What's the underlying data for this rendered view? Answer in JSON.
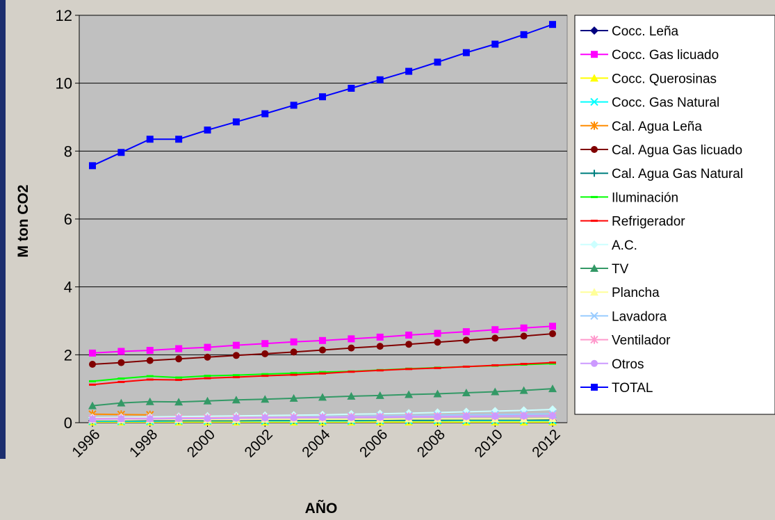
{
  "chart_data": {
    "type": "line",
    "title": "",
    "xlabel": "AÑO",
    "ylabel": "M ton CO2",
    "ylim": [
      0,
      12
    ],
    "yticks": [
      0,
      2,
      4,
      6,
      8,
      10,
      12
    ],
    "xtick_labels": [
      "1996",
      "1998",
      "2000",
      "2002",
      "2004",
      "2006",
      "2008",
      "2010",
      "2012"
    ],
    "x": [
      1996,
      1997,
      1998,
      1999,
      2000,
      2001,
      2002,
      2003,
      2004,
      2005,
      2006,
      2007,
      2008,
      2009,
      2010,
      2011,
      2012
    ],
    "grid": "horizontal",
    "legend_position": "right",
    "background_color": "#c0c0c0",
    "series": [
      {
        "name": "Cocc. Leña",
        "color": "#000080",
        "marker": "diamond",
        "values": [
          0.05,
          0.05,
          0.05,
          0.05,
          0.05,
          0.05,
          0.05,
          0.05,
          0.05,
          0.05,
          0.05,
          0.05,
          0.05,
          0.05,
          0.05,
          0.05,
          0.05
        ]
      },
      {
        "name": "Cocc. Gas licuado",
        "color": "#ff00ff",
        "marker": "square",
        "values": [
          2.05,
          2.1,
          2.13,
          2.18,
          2.22,
          2.28,
          2.33,
          2.38,
          2.42,
          2.47,
          2.52,
          2.58,
          2.63,
          2.68,
          2.74,
          2.79,
          2.84
        ]
      },
      {
        "name": "Cocc. Querosinas",
        "color": "#ffff00",
        "marker": "triangle",
        "values": [
          0.02,
          0.02,
          0.02,
          0.02,
          0.02,
          0.02,
          0.02,
          0.02,
          0.02,
          0.02,
          0.02,
          0.02,
          0.02,
          0.02,
          0.02,
          0.02,
          0.02
        ]
      },
      {
        "name": "Cocc. Gas Natural",
        "color": "#00ffff",
        "marker": "x",
        "values": [
          0.04,
          0.04,
          0.04,
          0.05,
          0.05,
          0.05,
          0.05,
          0.05,
          0.05,
          0.05,
          0.06,
          0.06,
          0.06,
          0.06,
          0.06,
          0.06,
          0.06
        ]
      },
      {
        "name": "Cal. Agua Leña",
        "color": "#ff8c00",
        "marker": "star",
        "values": [
          0.25,
          0.24,
          0.23,
          null,
          null,
          null,
          null,
          null,
          null,
          null,
          null,
          null,
          null,
          null,
          null,
          null,
          null
        ]
      },
      {
        "name": "Cal. Agua Gas licuado",
        "color": "#800000",
        "marker": "circle",
        "values": [
          1.72,
          1.77,
          1.83,
          1.88,
          1.93,
          1.98,
          2.03,
          2.08,
          2.14,
          2.2,
          2.25,
          2.31,
          2.37,
          2.43,
          2.49,
          2.55,
          2.62
        ]
      },
      {
        "name": "Cal. Agua Gas Natural",
        "color": "#008080",
        "marker": "plus",
        "values": [
          0.06,
          0.06,
          0.06,
          0.06,
          0.06,
          0.06,
          0.07,
          0.07,
          0.07,
          0.07,
          0.07,
          0.07,
          0.07,
          0.08,
          0.08,
          0.08,
          0.08
        ]
      },
      {
        "name": "Iluminación",
        "color": "#00ff00",
        "marker": "dash",
        "values": [
          1.22,
          1.3,
          1.37,
          1.33,
          1.38,
          1.4,
          1.43,
          1.46,
          1.49,
          1.51,
          1.55,
          1.59,
          1.62,
          1.65,
          1.68,
          1.71,
          1.74
        ]
      },
      {
        "name": "Refrigerador",
        "color": "#ff0000",
        "marker": "dash",
        "values": [
          1.12,
          1.2,
          1.27,
          1.26,
          1.31,
          1.34,
          1.38,
          1.41,
          1.45,
          1.5,
          1.54,
          1.58,
          1.61,
          1.65,
          1.69,
          1.73,
          1.77
        ]
      },
      {
        "name": "A.C.",
        "color": "#ccffff",
        "marker": "diamond",
        "values": [
          0.15,
          0.16,
          0.17,
          0.18,
          0.19,
          0.2,
          0.21,
          0.22,
          0.23,
          0.25,
          0.26,
          0.28,
          0.3,
          0.32,
          0.34,
          0.36,
          0.39
        ]
      },
      {
        "name": "TV",
        "color": "#339966",
        "marker": "triangle",
        "values": [
          0.5,
          0.58,
          0.62,
          0.61,
          0.64,
          0.67,
          0.69,
          0.72,
          0.75,
          0.78,
          0.8,
          0.83,
          0.85,
          0.88,
          0.91,
          0.95,
          1.0
        ]
      },
      {
        "name": "Plancha",
        "color": "#ffff99",
        "marker": "triangle",
        "values": [
          0.08,
          0.08,
          0.09,
          0.09,
          0.09,
          0.09,
          0.1,
          0.1,
          0.1,
          0.1,
          0.1,
          0.11,
          0.11,
          0.11,
          0.11,
          0.11,
          0.12
        ]
      },
      {
        "name": "Lavadora",
        "color": "#99ccff",
        "marker": "x",
        "values": [
          0.1,
          0.11,
          0.12,
          0.13,
          0.14,
          0.15,
          0.16,
          0.17,
          0.18,
          0.19,
          0.2,
          0.21,
          0.22,
          0.23,
          0.24,
          0.25,
          0.26
        ]
      },
      {
        "name": "Ventilador",
        "color": "#ff99cc",
        "marker": "star",
        "values": [
          0.12,
          0.13,
          0.13,
          0.14,
          0.14,
          0.15,
          0.15,
          0.16,
          0.16,
          0.17,
          0.17,
          0.18,
          0.18,
          0.19,
          0.19,
          0.2,
          0.2
        ]
      },
      {
        "name": "Otros",
        "color": "#cc99ff",
        "marker": "circle",
        "values": [
          0.1,
          0.11,
          0.11,
          0.12,
          0.12,
          0.13,
          0.14,
          0.14,
          0.15,
          0.15,
          0.16,
          0.17,
          0.17,
          0.18,
          0.19,
          0.2,
          0.2
        ]
      },
      {
        "name": "TOTAL",
        "color": "#0000ff",
        "marker": "square",
        "values": [
          7.57,
          7.96,
          8.35,
          8.35,
          8.62,
          8.86,
          9.1,
          9.35,
          9.6,
          9.85,
          10.1,
          10.35,
          10.62,
          10.9,
          11.15,
          11.43,
          11.73
        ]
      }
    ]
  }
}
